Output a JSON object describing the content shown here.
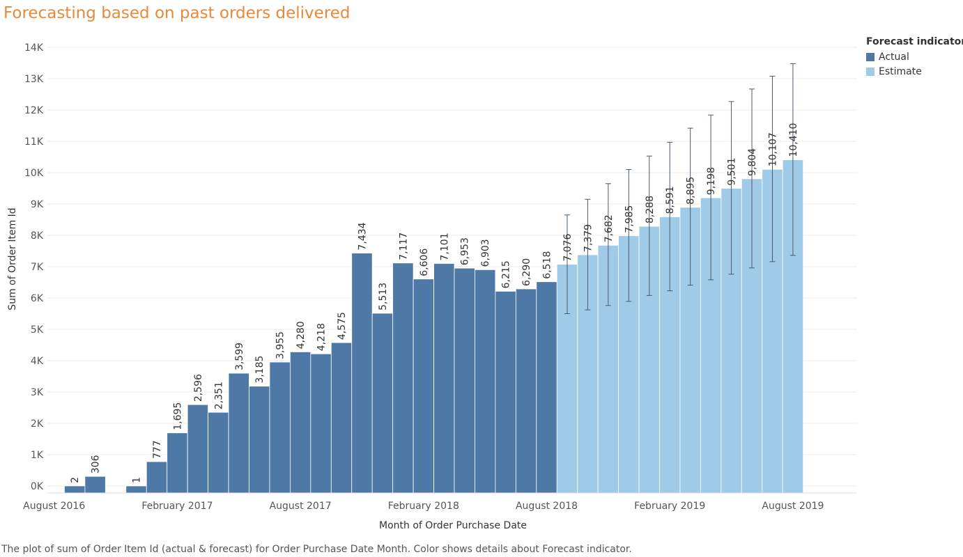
{
  "chart_data": {
    "type": "bar",
    "title": "Forecasting based on past orders delivered",
    "xlabel": "Month of Order Purchase Date",
    "ylabel": "Sum of Order Item Id",
    "yticks": [
      "0K",
      "1K",
      "2K",
      "3K",
      "4K",
      "5K",
      "6K",
      "7K",
      "8K",
      "9K",
      "10K",
      "11K",
      "12K",
      "13K",
      "14K"
    ],
    "ylim": [
      0,
      14000
    ],
    "grid": true,
    "x_tick_labels": [
      {
        "label": "August 2016",
        "month": "2016-08"
      },
      {
        "label": "February 2017",
        "month": "2017-02"
      },
      {
        "label": "August 2017",
        "month": "2017-08"
      },
      {
        "label": "February 2018",
        "month": "2018-02"
      },
      {
        "label": "August 2018",
        "month": "2018-08"
      },
      {
        "label": "February 2019",
        "month": "2019-02"
      },
      {
        "label": "August 2019",
        "month": "2019-08"
      }
    ],
    "legend": {
      "title": "Forecast indicator",
      "placement": "top-right",
      "items": [
        {
          "name": "Actual",
          "color": "#4e79a7"
        },
        {
          "name": "Estimate",
          "color": "#a0cbe8"
        }
      ]
    },
    "series": [
      {
        "name": "Actual",
        "color": "#4e79a7",
        "points": [
          {
            "month": "2016-09",
            "value": 2,
            "label": "2"
          },
          {
            "month": "2016-10",
            "value": 306,
            "label": "306"
          },
          {
            "month": "2016-12",
            "value": 1,
            "label": "1"
          },
          {
            "month": "2017-01",
            "value": 777,
            "label": "777"
          },
          {
            "month": "2017-02",
            "value": 1695,
            "label": "1,695"
          },
          {
            "month": "2017-03",
            "value": 2596,
            "label": "2,596"
          },
          {
            "month": "2017-04",
            "value": 2351,
            "label": "2,351"
          },
          {
            "month": "2017-05",
            "value": 3599,
            "label": "3,599"
          },
          {
            "month": "2017-06",
            "value": 3185,
            "label": "3,185"
          },
          {
            "month": "2017-07",
            "value": 3955,
            "label": "3,955"
          },
          {
            "month": "2017-08",
            "value": 4280,
            "label": "4,280"
          },
          {
            "month": "2017-09",
            "value": 4218,
            "label": "4,218"
          },
          {
            "month": "2017-10",
            "value": 4575,
            "label": "4,575"
          },
          {
            "month": "2017-11",
            "value": 7434,
            "label": "7,434"
          },
          {
            "month": "2017-12",
            "value": 5513,
            "label": "5,513"
          },
          {
            "month": "2018-01",
            "value": 7117,
            "label": "7,117"
          },
          {
            "month": "2018-02",
            "value": 6606,
            "label": "6,606"
          },
          {
            "month": "2018-03",
            "value": 7101,
            "label": "7,101"
          },
          {
            "month": "2018-04",
            "value": 6953,
            "label": "6,953"
          },
          {
            "month": "2018-05",
            "value": 6903,
            "label": "6,903"
          },
          {
            "month": "2018-06",
            "value": 6215,
            "label": "6,215"
          },
          {
            "month": "2018-07",
            "value": 6290,
            "label": "6,290"
          },
          {
            "month": "2018-08",
            "value": 6518,
            "label": "6,518"
          }
        ]
      },
      {
        "name": "Estimate",
        "color": "#a0cbe8",
        "points": [
          {
            "month": "2018-09",
            "value": 7076,
            "label": "7,076",
            "low": 5500,
            "high": 8650
          },
          {
            "month": "2018-10",
            "value": 7379,
            "label": "7,379",
            "low": 5620,
            "high": 9150
          },
          {
            "month": "2018-11",
            "value": 7682,
            "label": "7,682",
            "low": 5760,
            "high": 9650
          },
          {
            "month": "2018-12",
            "value": 7985,
            "label": "7,985",
            "low": 5890,
            "high": 10100
          },
          {
            "month": "2019-01",
            "value": 8288,
            "label": "8,288",
            "low": 6080,
            "high": 10530
          },
          {
            "month": "2019-02",
            "value": 8591,
            "label": "8,591",
            "low": 6230,
            "high": 10970
          },
          {
            "month": "2019-03",
            "value": 8895,
            "label": "8,895",
            "low": 6410,
            "high": 11420
          },
          {
            "month": "2019-04",
            "value": 9198,
            "label": "9,198",
            "low": 6580,
            "high": 11840
          },
          {
            "month": "2019-05",
            "value": 9501,
            "label": "9,501",
            "low": 6760,
            "high": 12270
          },
          {
            "month": "2019-06",
            "value": 9804,
            "label": "9,804",
            "low": 6960,
            "high": 12670
          },
          {
            "month": "2019-07",
            "value": 10107,
            "label": "10,107",
            "low": 7160,
            "high": 13080
          },
          {
            "month": "2019-08",
            "value": 10410,
            "label": "10,410",
            "low": 7360,
            "high": 13480
          }
        ]
      }
    ],
    "caption": "The plot of sum of Order Item Id (actual & forecast)  for Order Purchase Date Month.  Color shows details about Forecast indicator."
  }
}
